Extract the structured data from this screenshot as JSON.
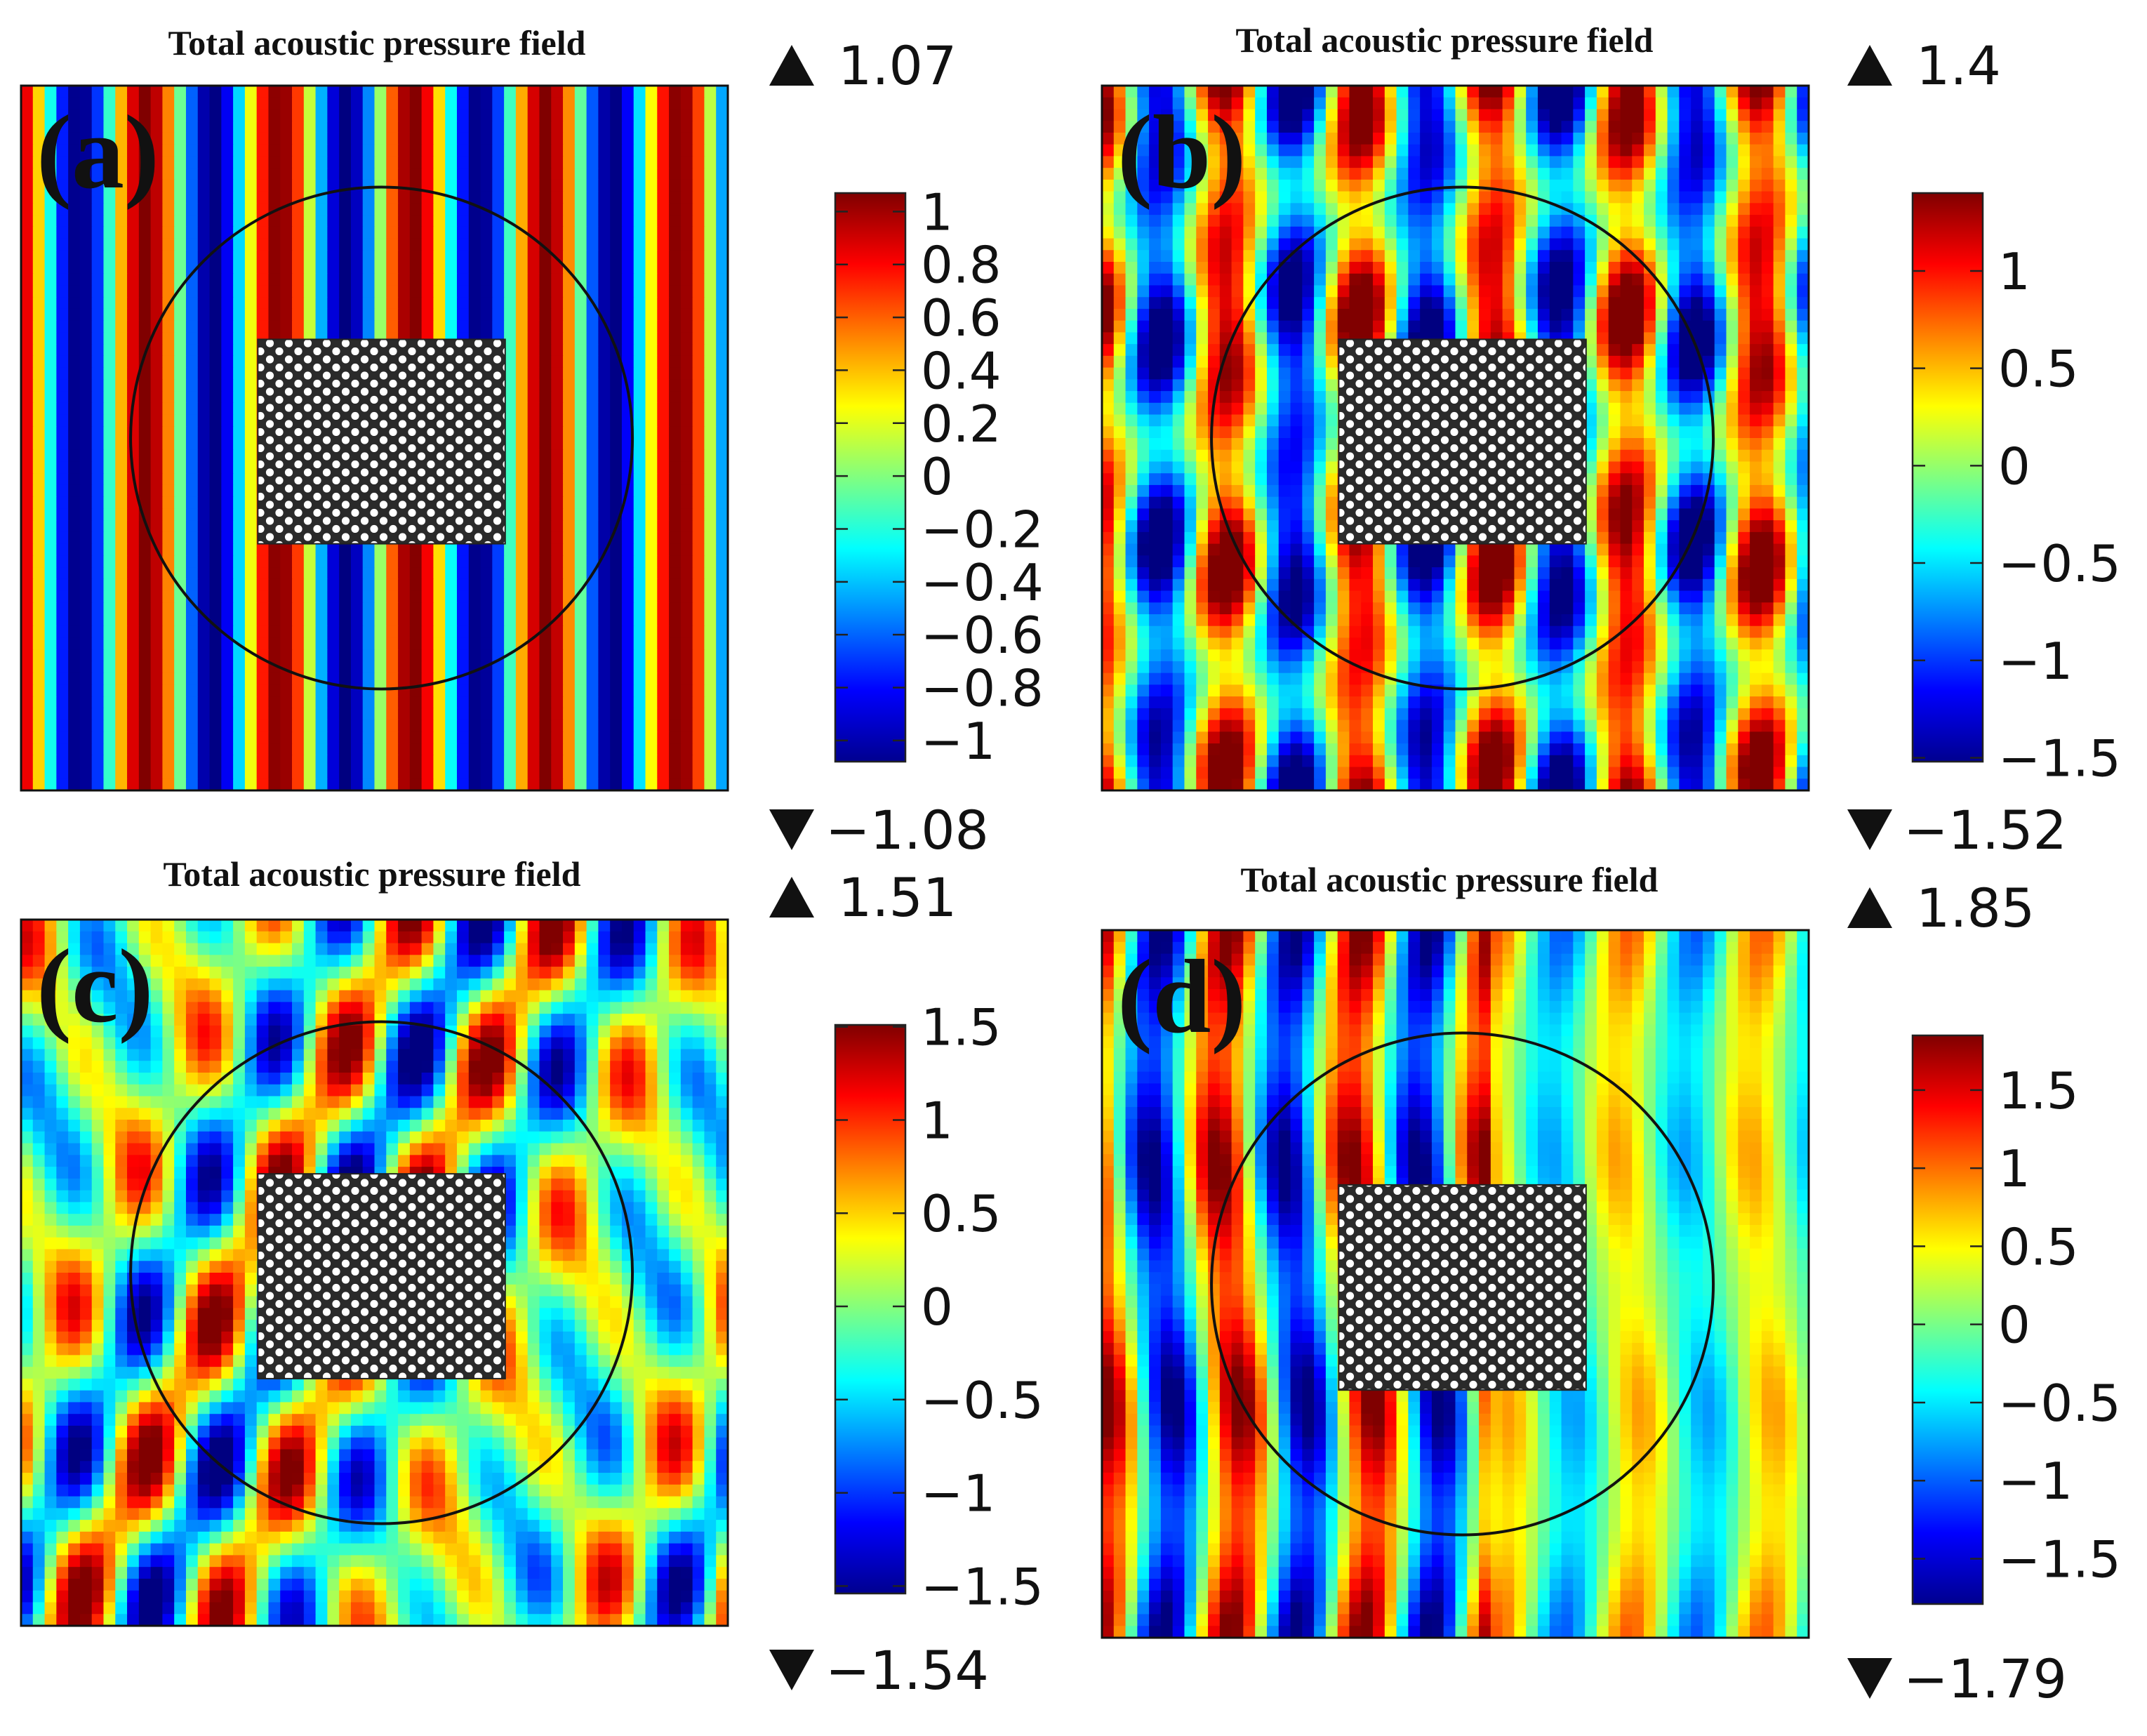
{
  "chart_data": [
    {
      "type": "heatmap",
      "label": "(a)",
      "title": "Total acoustic pressure field",
      "colorbar": {
        "ticks": [
          "1",
          "0.8",
          "0.6",
          "0.4",
          "0.2",
          "0",
          "−0.2",
          "−0.4",
          "−0.6",
          "−0.8",
          "−1"
        ],
        "tick_values": [
          1,
          0.8,
          0.6,
          0.4,
          0.2,
          0,
          -0.2,
          -0.4,
          -0.6,
          -0.8,
          -1
        ],
        "range": [
          -1.08,
          1.07
        ]
      },
      "max_label": "1.07",
      "min_label": "−1.08",
      "max": 1.07,
      "min": -1.08,
      "colormap": "jet",
      "field": "plane wave, vertical fringes, nearly undisturbed by the square crystal"
    },
    {
      "type": "heatmap",
      "label": "(b)",
      "title": "Total acoustic pressure field",
      "colorbar": {
        "ticks": [
          "1",
          "0.5",
          "0",
          "−0.5",
          "−1",
          "−1.5"
        ],
        "tick_values": [
          1,
          0.5,
          0,
          -0.5,
          -1,
          -1.5
        ],
        "range": [
          -1.52,
          1.4
        ]
      },
      "max_label": "1.4",
      "min_label": "−1.52",
      "max": 1.4,
      "min": -1.52,
      "colormap": "jet",
      "field": "scattered fringes with lobes behind crystal"
    },
    {
      "type": "heatmap",
      "label": "(c)",
      "title": "Total acoustic pressure field",
      "colorbar": {
        "ticks": [
          "1.5",
          "1",
          "0.5",
          "0",
          "−0.5",
          "−1",
          "−1.5"
        ],
        "tick_values": [
          1.5,
          1,
          0.5,
          0,
          -0.5,
          -1,
          -1.5
        ],
        "range": [
          -1.54,
          1.51
        ]
      },
      "max_label": "1.51",
      "min_label": "−1.54",
      "max": 1.51,
      "min": -1.54,
      "colormap": "jet",
      "field": "strongly scattered lobes around crystal"
    },
    {
      "type": "heatmap",
      "label": "(d)",
      "title": "Total acoustic pressure field",
      "colorbar": {
        "ticks": [
          "1.5",
          "1",
          "0.5",
          "0",
          "−0.5",
          "−1",
          "−1.5"
        ],
        "tick_values": [
          1.5,
          1,
          0.5,
          0,
          -0.5,
          -1,
          -1.5
        ],
        "range": [
          -1.79,
          1.85
        ]
      },
      "max_label": "1.85",
      "min_label": "−1.79",
      "max": 1.85,
      "min": -1.79,
      "colormap": "jet",
      "field": "crystal blocks wave; shadow region behind crystal"
    }
  ],
  "colors": {
    "jet": [
      "#00008f",
      "#0000ff",
      "#0080ff",
      "#00ffff",
      "#80ff80",
      "#ffff00",
      "#ff8000",
      "#ff0000",
      "#800000"
    ]
  },
  "icons": {
    "max": "triangle-up-icon",
    "min": "triangle-down-icon"
  }
}
